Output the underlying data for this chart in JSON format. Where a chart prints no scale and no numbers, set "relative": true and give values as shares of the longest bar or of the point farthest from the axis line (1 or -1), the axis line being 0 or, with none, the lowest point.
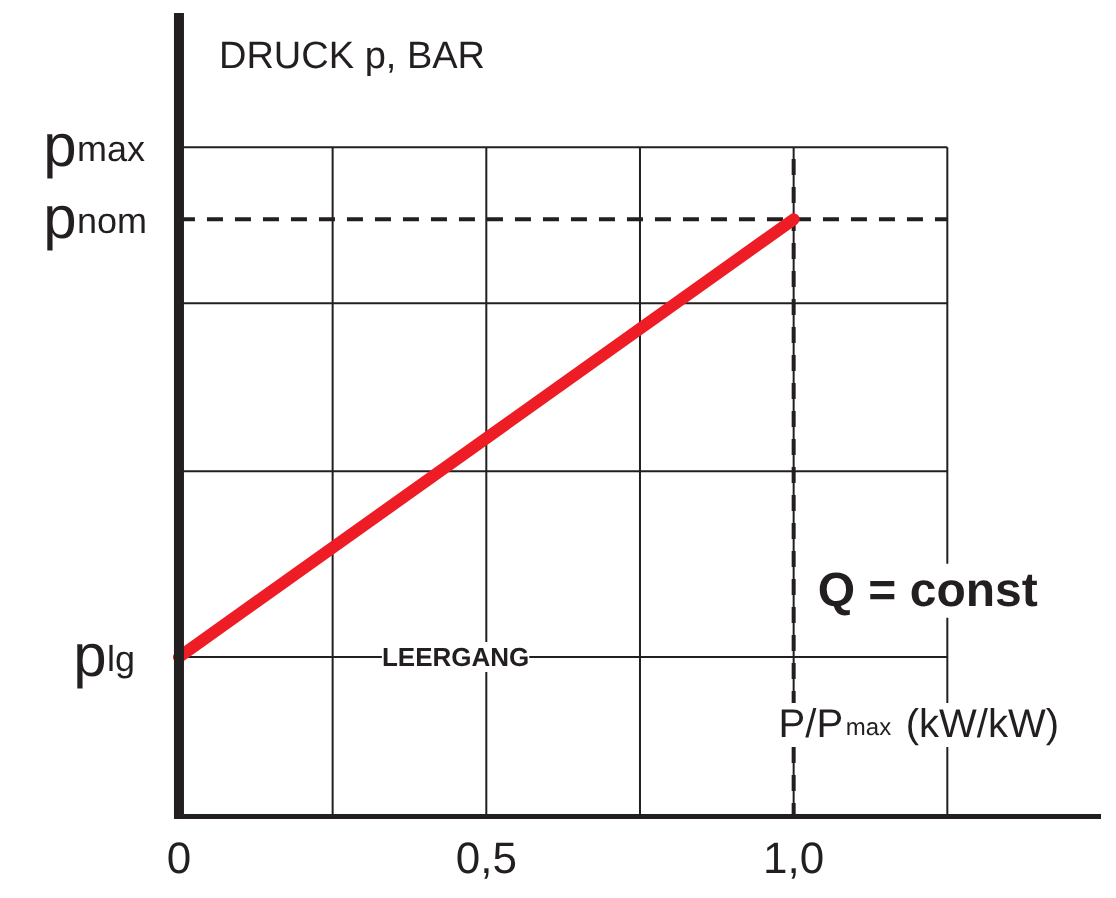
{
  "chart_data": {
    "type": "line",
    "title": "DRUCK p, BAR",
    "xlabel": "P/P$_{max}$ (kW/kW)",
    "relative": true,
    "x": [
      0,
      1.0
    ],
    "series": [
      {
        "color": "#ee1c24",
        "values": [
          0.27,
          1
        ]
      }
    ],
    "xlim": [
      0,
      1.5
    ],
    "xticks": [
      0,
      {
        "value": 0.25,
        "label": null
      },
      {
        "value": 0.5,
        "label": "0,5"
      },
      {
        "value": 0.75,
        "label": null
      },
      {
        "value": 1.0,
        "label": "1,0"
      },
      {
        "value": 1.25,
        "label": null
      }
    ],
    "grid": "x",
    "ref_lines": [
      {
        "axis": "y",
        "value": 1.12,
        "label": "p$_{max}$",
        "color": "#231f20",
        "line_style": "solid"
      },
      {
        "axis": "y",
        "value": 1,
        "label": "p$_{nom}$",
        "color": "#231f20",
        "line_style": "dashed"
      },
      {
        "axis": "y",
        "value": 0.86,
        "label": null,
        "color": "#231f20",
        "line_style": "solid"
      },
      {
        "axis": "y",
        "value": 0.58,
        "label": null,
        "color": "#231f20",
        "line_style": "solid"
      },
      {
        "axis": "y",
        "value": 0.27,
        "label": "p$_{lg}$",
        "color": "#231f20",
        "line_style": "solid"
      },
      {
        "axis": "x",
        "value": 1.0,
        "label": "Q = const",
        "color": "#231f20",
        "line_style": "dashed"
      }
    ],
    "annotations": [
      {
        "text": "LEERGANG",
        "x": 0.45,
        "y": 0.27
      }
    ]
  }
}
